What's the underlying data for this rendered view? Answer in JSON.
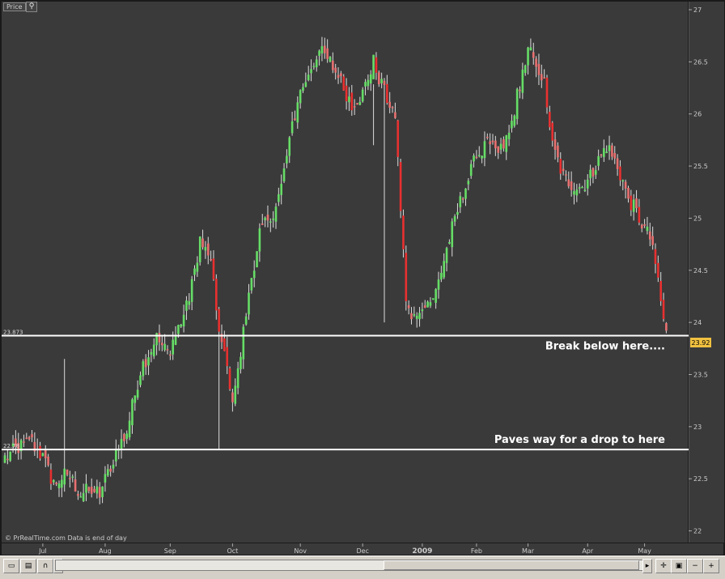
{
  "window": {
    "price_tab": "Price"
  },
  "chart_data": {
    "type": "candlestick",
    "yaxis": {
      "ylim": [
        21.95,
        27.0
      ],
      "tick_labels": [
        "27",
        "26.5",
        "26",
        "25.5",
        "25",
        "24.5",
        "24",
        "23.5",
        "23",
        "22.5",
        "22"
      ],
      "tick_values": [
        27.0,
        26.5,
        26.0,
        25.5,
        25.0,
        24.5,
        24.0,
        23.5,
        23.0,
        22.5,
        22.0
      ]
    },
    "xaxis": {
      "tick_labels": [
        "Jul",
        "Aug",
        "Sep",
        "Oct",
        "Nov",
        "Dec",
        "2009",
        "Feb",
        "Mar",
        "Apr",
        "May"
      ],
      "tick_sessions": [
        14,
        37,
        61,
        84,
        109,
        132,
        154,
        174,
        193,
        215,
        236
      ]
    },
    "last_price": "23.92",
    "colors": {
      "up": "#66dd66",
      "down": "#e87070",
      "down_strong": "#e83030",
      "background": "#3a3a3a",
      "level_line": "#ffffff",
      "text": "#ffffff",
      "price_tag": "#f0c040"
    },
    "levels": [
      {
        "value": 23.873,
        "label": "23.873",
        "annotation": "Break below here...."
      },
      {
        "value": 22.78,
        "label": "22.78",
        "annotation": "Paves way for a drop to here"
      }
    ],
    "watermark": "© PrRealTime.com Data is end of day",
    "anchors": [
      [
        0,
        22.7
      ],
      [
        5,
        22.8
      ],
      [
        10,
        22.85
      ],
      [
        14,
        22.7
      ],
      [
        18,
        22.45
      ],
      [
        23,
        22.55
      ],
      [
        28,
        22.35
      ],
      [
        32,
        22.4
      ],
      [
        35,
        22.35
      ],
      [
        40,
        22.7
      ],
      [
        45,
        22.95
      ],
      [
        50,
        23.55
      ],
      [
        56,
        23.85
      ],
      [
        60,
        23.7
      ],
      [
        64,
        23.95
      ],
      [
        68,
        24.2
      ],
      [
        72,
        24.8
      ],
      [
        76,
        24.55
      ],
      [
        79,
        23.9
      ],
      [
        82,
        23.55
      ],
      [
        84,
        23.3
      ],
      [
        87,
        23.7
      ],
      [
        90,
        24.3
      ],
      [
        94,
        24.85
      ],
      [
        98,
        25.0
      ],
      [
        102,
        25.3
      ],
      [
        106,
        25.9
      ],
      [
        109,
        26.2
      ],
      [
        112,
        26.4
      ],
      [
        116,
        26.6
      ],
      [
        120,
        26.5
      ],
      [
        124,
        26.3
      ],
      [
        128,
        26.1
      ],
      [
        132,
        26.2
      ],
      [
        136,
        26.5
      ],
      [
        140,
        26.2
      ],
      [
        144,
        26.0
      ],
      [
        148,
        24.2
      ],
      [
        150,
        24.0
      ],
      [
        154,
        24.2
      ],
      [
        158,
        24.2
      ],
      [
        162,
        24.6
      ],
      [
        166,
        25.0
      ],
      [
        170,
        25.3
      ],
      [
        174,
        25.6
      ],
      [
        178,
        25.7
      ],
      [
        182,
        25.6
      ],
      [
        186,
        25.8
      ],
      [
        190,
        26.3
      ],
      [
        193,
        26.6
      ],
      [
        196,
        26.5
      ],
      [
        199,
        26.3
      ],
      [
        202,
        25.7
      ],
      [
        206,
        25.4
      ],
      [
        210,
        25.3
      ],
      [
        214,
        25.3
      ],
      [
        218,
        25.5
      ],
      [
        222,
        25.7
      ],
      [
        226,
        25.5
      ],
      [
        230,
        25.2
      ],
      [
        234,
        25.0
      ],
      [
        238,
        24.8
      ],
      [
        241,
        24.4
      ],
      [
        243,
        24.0
      ],
      [
        244,
        23.92
      ]
    ]
  }
}
